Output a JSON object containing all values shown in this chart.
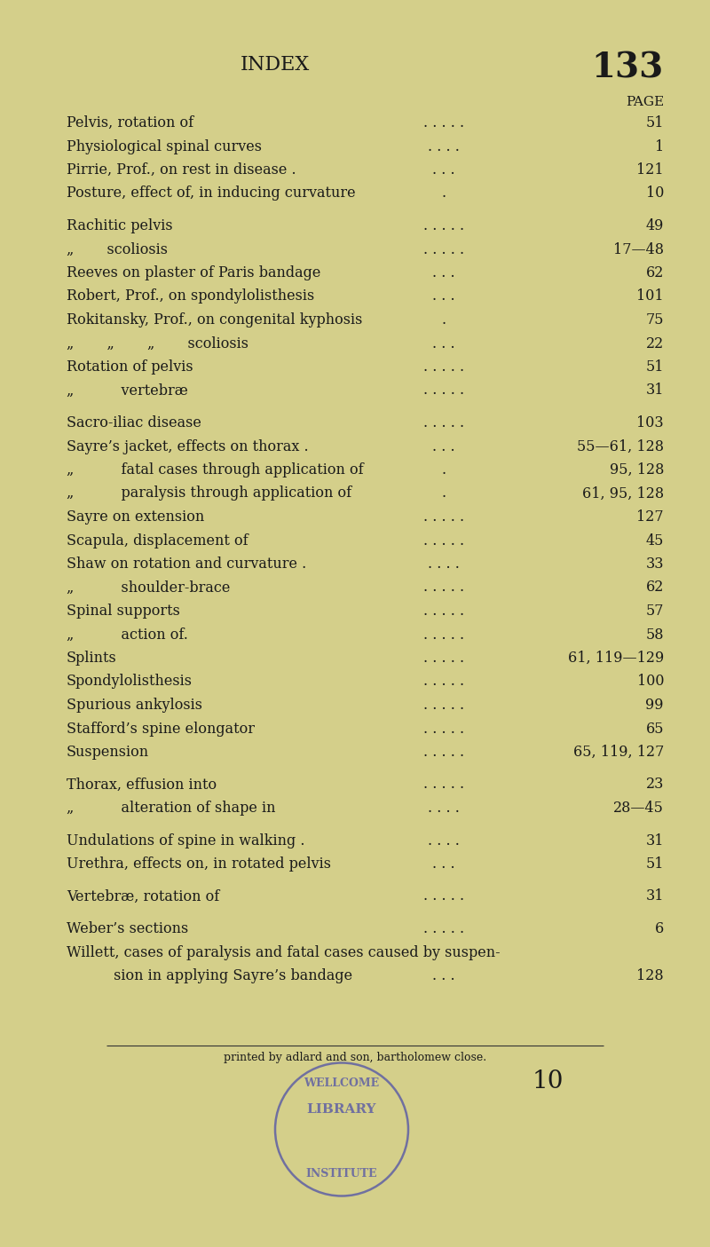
{
  "bg_color": "#d4cf8a",
  "text_color": "#1a1a1a",
  "title": "INDEX",
  "page_num": "133",
  "page_label": "PAGE",
  "entries": [
    {
      "text": "Pelvis, rotation of",
      "dots": ". . . . .",
      "page": "51",
      "group_gap_before": false
    },
    {
      "text": "Physiological spinal curves",
      "dots": ". . . .",
      "page": "1",
      "group_gap_before": false
    },
    {
      "text": "Pirrie, Prof., on rest in disease .",
      "dots": ". . .",
      "page": "121",
      "group_gap_before": false
    },
    {
      "text": "Posture, effect of, in inducing curvature",
      "dots": ".",
      "page": "10",
      "group_gap_before": false
    },
    {
      "text": "",
      "dots": "",
      "page": "",
      "group_gap_before": true
    },
    {
      "text": "Rachitic pelvis",
      "dots": ". . . . .",
      "page": "49",
      "group_gap_before": false
    },
    {
      "text": "„   scoliosis",
      "dots": ". . . . .",
      "page": "17—48",
      "group_gap_before": false
    },
    {
      "text": "Reeves on plaster of Paris bandage",
      "dots": ". . .",
      "page": "62",
      "group_gap_before": false
    },
    {
      "text": "Robert, Prof., on spondylolisthesis",
      "dots": ". . .",
      "page": "101",
      "group_gap_before": false
    },
    {
      "text": "Rokitansky, Prof., on congenital kyphosis",
      "dots": ".",
      "page": "75",
      "group_gap_before": false
    },
    {
      "text": "„   „   „   scoliosis",
      "dots": ". . .",
      "page": "22",
      "group_gap_before": false
    },
    {
      "text": "Rotation of pelvis",
      "dots": ". . . . .",
      "page": "51",
      "group_gap_before": false
    },
    {
      "text": "„    vertebræ",
      "dots": ". . . . .",
      "page": "31",
      "group_gap_before": false
    },
    {
      "text": "",
      "dots": "",
      "page": "",
      "group_gap_before": true
    },
    {
      "text": "Sacro-iliac disease",
      "dots": ". . . . .",
      "page": "103",
      "group_gap_before": false
    },
    {
      "text": "Sayre’s jacket, effects on thorax .",
      "dots": ". . .",
      "page": "55—61, 128",
      "group_gap_before": false
    },
    {
      "text": "„    fatal cases through application of",
      "dots": ".",
      "page": "95, 128",
      "group_gap_before": false
    },
    {
      "text": "„    paralysis through application of",
      "dots": ".",
      "page": "61, 95, 128",
      "group_gap_before": false
    },
    {
      "text": "Sayre on extension",
      "dots": ". . . . .",
      "page": "127",
      "group_gap_before": false
    },
    {
      "text": "Scapula, displacement of",
      "dots": ". . . . .",
      "page": "45",
      "group_gap_before": false
    },
    {
      "text": "Shaw on rotation and curvature .",
      "dots": ". . . .",
      "page": "33",
      "group_gap_before": false
    },
    {
      "text": "„    shoulder-brace",
      "dots": ". . . . .",
      "page": "62",
      "group_gap_before": false
    },
    {
      "text": "Spinal supports",
      "dots": ". . . . .",
      "page": "57",
      "group_gap_before": false
    },
    {
      "text": "„    action of.",
      "dots": ". . . . .",
      "page": "58",
      "group_gap_before": false
    },
    {
      "text": "Splints",
      "dots": ". . . . .",
      "page": "61, 119—129",
      "group_gap_before": false
    },
    {
      "text": "Spondylolisthesis",
      "dots": ". . . . .",
      "page": "100",
      "group_gap_before": false
    },
    {
      "text": "Spurious ankylosis",
      "dots": ". . . . .",
      "page": "99",
      "group_gap_before": false
    },
    {
      "text": "Stafford’s spine elongator",
      "dots": ". . . . .",
      "page": "65",
      "group_gap_before": false
    },
    {
      "text": "Suspension",
      "dots": ". . . . .",
      "page": "65, 119, 127",
      "group_gap_before": false
    },
    {
      "text": "",
      "dots": "",
      "page": "",
      "group_gap_before": true
    },
    {
      "text": "Thorax, effusion into",
      "dots": ". . . . .",
      "page": "23",
      "group_gap_before": false
    },
    {
      "text": "„    alteration of shape in",
      "dots": ". . . .",
      "page": "28—45",
      "group_gap_before": false
    },
    {
      "text": "",
      "dots": "",
      "page": "",
      "group_gap_before": true
    },
    {
      "text": "Undulations of spine in walking .",
      "dots": ". . . .",
      "page": "31",
      "group_gap_before": false
    },
    {
      "text": "Urethra, effects on, in rotated pelvis",
      "dots": ". . .",
      "page": "51",
      "group_gap_before": false
    },
    {
      "text": "",
      "dots": "",
      "page": "",
      "group_gap_before": true
    },
    {
      "text": "Vertebræ, rotation of",
      "dots": ". . . . .",
      "page": "31",
      "group_gap_before": false
    },
    {
      "text": "",
      "dots": "",
      "page": "",
      "group_gap_before": true
    },
    {
      "text": "Weber’s sections",
      "dots": ". . . . .",
      "page": "6",
      "group_gap_before": false
    },
    {
      "text": "Willett, cases of paralysis and fatal cases caused by suspen-",
      "dots": "",
      "page": "",
      "group_gap_before": false
    },
    {
      "text": "    sion in applying Sayre’s bandage",
      "dots": ". . .",
      "page": "128",
      "group_gap_before": false
    }
  ],
  "footer_text": "printed by adlard and son, bartholomew close.",
  "stamp_num": "10",
  "stamp_line1": "WELLCOME",
  "stamp_line2": "LIBRARY",
  "stamp_line3": "INSTITUTE",
  "stamp_color": "#7070a0"
}
